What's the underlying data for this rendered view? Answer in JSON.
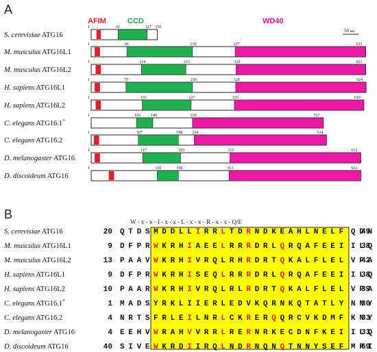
{
  "panel_a": {
    "label": "A",
    "legend": [
      {
        "text": "AFIM",
        "color": "#e8202a"
      },
      {
        "text": "CCD",
        "color": "#1aa64a"
      },
      {
        "text": "WD40",
        "color": "#e6139a"
      }
    ],
    "scale_bar": "50 aa",
    "colors": {
      "afim": "#ed1c24",
      "ccd": "#1fb14f",
      "wd40": "#ec18a6",
      "outline": "#222222"
    },
    "proteins": [
      {
        "species": "S. cerevisiae",
        "gene": "ATG16",
        "star": "",
        "length": 150,
        "afim": [
          12,
          22
        ],
        "ccd": [
          61,
          127
        ],
        "wd40": null,
        "labels": [
          "1",
          "61",
          "127",
          "150"
        ]
      },
      {
        "species": "M. musculus",
        "gene": "ATG16L1",
        "star": "",
        "length": 623,
        "afim": [
          8,
          20
        ],
        "ccd": [
          81,
          230
        ],
        "wd40": [
          327,
          623
        ],
        "labels": [
          "1",
          "81",
          "230",
          "327",
          "623"
        ]
      },
      {
        "species": "M. musculus",
        "gene": "ATG16L2",
        "star": "",
        "length": 623,
        "afim": [
          10,
          22
        ],
        "ccd": [
          114,
          215
        ],
        "wd40": [
          329,
          623
        ],
        "labels": [
          "1",
          "114",
          "215",
          "329",
          "623"
        ]
      },
      {
        "species": "H. sapiens",
        "gene": "ATG16L1",
        "star": "",
        "length": 624,
        "afim": [
          8,
          20
        ],
        "ccd": [
          79,
          230
        ],
        "wd40": [
          328,
          624
        ],
        "labels": [
          "1",
          "79",
          "230",
          "328",
          "624"
        ]
      },
      {
        "species": "H. sapiens",
        "gene": "ATG16L2",
        "star": "",
        "length": 619,
        "afim": [
          10,
          22
        ],
        "ccd": [
          116,
          227
        ],
        "wd40": [
          325,
          619
        ],
        "labels": [
          "1",
          "116",
          "227",
          "325",
          "619"
        ]
      },
      {
        "species": "C. elegans",
        "gene": "ATG16.1",
        "star": "*",
        "length": 527,
        "afim": null,
        "ccd": [
          103,
          140
        ],
        "wd40": [
          230,
          527
        ],
        "labels": [
          "1",
          "103",
          "140",
          "230",
          "527"
        ]
      },
      {
        "species": "C. elegans",
        "gene": "ATG16.2",
        "star": "",
        "length": 534,
        "afim": [
          6,
          18
        ],
        "ccd": [
          107,
          198
        ],
        "wd40": [
          234,
          534
        ],
        "labels": [
          "1",
          "107",
          "198",
          "234",
          "534"
        ]
      },
      {
        "species": "D. melanogaster",
        "gene": "ATG16",
        "star": "",
        "length": 612,
        "afim": [
          8,
          20
        ],
        "ccd": [
          117,
          203
        ],
        "wd40": [
          315,
          612
        ],
        "labels": [
          "1",
          "117",
          "203",
          "315",
          "612"
        ]
      },
      {
        "species": "D. discoideum",
        "gene": "ATG16",
        "star": "",
        "length": 612,
        "afim": [
          40,
          52
        ],
        "ccd": [
          150,
          198
        ],
        "wd40": [
          313,
          612
        ],
        "labels": [
          "1",
          "150",
          "198",
          "313",
          "612"
        ]
      }
    ]
  },
  "panel_b": {
    "label": "B",
    "motif": "W - x - x - I - x - x - L - x - x - R - x - x - Q/E",
    "highlight_color": "#ffff00",
    "red_color": "#e8202a",
    "rows": [
      {
        "species": "S. cerevisiae",
        "gene": "ATG16",
        "star": "",
        "start": "20",
        "pre": "QTDS",
        "core": "MDDLLIRRLTDRNDKEAHLNELF",
        "post": "QDN",
        "end": "49",
        "red": [
          5,
          8,
          11
        ]
      },
      {
        "species": "M. musculus",
        "gene": "ATG16L1",
        "star": "",
        "start": "9",
        "pre": "DFPR",
        "core": "WKRHIAEELRRRDRLQRQAFEEI",
        "post": "ILQ",
        "end": "38",
        "red": [
          0,
          4,
          8,
          11,
          15
        ]
      },
      {
        "species": "M. musculus",
        "gene": "ATG16L2",
        "star": "",
        "start": "13",
        "pre": "PAAV",
        "core": "WKRHIVRQLRHRDRTQKALFLEL",
        "post": "VPA",
        "end": "42",
        "red": [
          0,
          4,
          11,
          15
        ]
      },
      {
        "species": "H. sapiens",
        "gene": "ATG16L1",
        "star": "",
        "start": "9",
        "pre": "DFPR",
        "core": "WKRHISEQLRRRDRLQRQAFEEI",
        "post": "ILQ",
        "end": "38",
        "red": [
          0,
          4,
          8,
          11,
          15
        ]
      },
      {
        "species": "H. sapiens",
        "gene": "ATG16L2",
        "star": "",
        "start": "10",
        "pre": "PAAR",
        "core": "WKRHIVRQLRLRDRTQKALFLEL",
        "post": "VPA",
        "end": "39",
        "red": [
          0,
          4,
          11,
          15
        ]
      },
      {
        "species": "C. elegans",
        "gene": "ATG16.1",
        "star": "*",
        "start": "1",
        "pre": "MADS",
        "core": "YRKLIIERLEDVKQRNKQTATLY",
        "post": "NNY",
        "end": "30",
        "red": []
      },
      {
        "species": "C. elegans",
        "gene": "ATG16.2",
        "star": "",
        "start": "4",
        "pre": "NRTS",
        "core": "FRLEILNRLCKRERQQRCVKDMF",
        "post": "KNY",
        "end": "33",
        "red": [
          4,
          8,
          11,
          14
        ]
      },
      {
        "species": "D. melanogaster",
        "gene": "ATG16",
        "star": "",
        "start": "4",
        "pre": "EEHV",
        "core": "WRAHVVRRLRERNRKECDNFKEI",
        "post": "ILQ",
        "end": "33",
        "red": [
          0,
          4,
          8,
          11
        ]
      },
      {
        "species": "D. discoideum",
        "gene": "ATG16",
        "star": "",
        "start": "40",
        "pre": "SIVE",
        "core": "WKRDIIRQLNDRNQNQTNNYSEF",
        "post": "MRI",
        "end": "69",
        "red": [
          0,
          4,
          8,
          11,
          15
        ]
      }
    ]
  }
}
